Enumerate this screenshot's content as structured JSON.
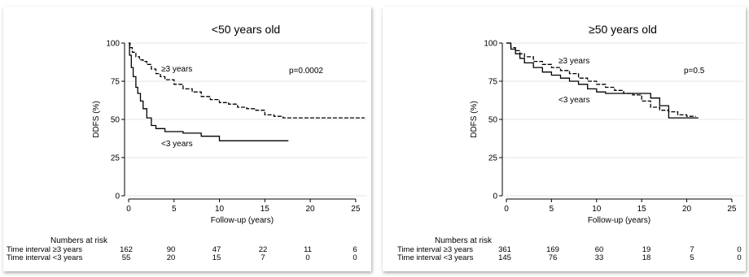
{
  "chart_data": [
    {
      "type": "line",
      "title": "<50 years old",
      "xlabel": "Follow-up (years)",
      "ylabel": "DDFS (%)",
      "xlim": [
        0,
        26
      ],
      "ylim": [
        0,
        100
      ],
      "xticks": [
        0,
        5,
        10,
        15,
        20,
        25
      ],
      "yticks": [
        0,
        25,
        50,
        75,
        100
      ],
      "pvalue": "p=0.0002",
      "series": [
        {
          "name": "≥3 years",
          "style": "dashed",
          "x": [
            0,
            0.15,
            0.4,
            0.8,
            1.2,
            1.6,
            2,
            2.5,
            3,
            3.5,
            4,
            5,
            6,
            7,
            8,
            9,
            10,
            11,
            12,
            13,
            14,
            15,
            16,
            17,
            26
          ],
          "y": [
            100,
            97,
            94,
            91,
            89,
            88,
            86,
            83,
            80,
            78,
            76,
            73,
            70,
            68,
            65,
            63,
            61,
            60,
            58,
            57,
            56,
            53,
            52,
            51,
            51
          ]
        },
        {
          "name": "<3 years",
          "style": "solid",
          "x": [
            0,
            0.1,
            0.3,
            0.5,
            0.8,
            1,
            1.3,
            1.6,
            2,
            2.5,
            3,
            4,
            5,
            6,
            8,
            9,
            10,
            14,
            17.6
          ],
          "y": [
            100,
            92,
            84,
            78,
            71,
            67,
            62,
            57,
            51,
            46,
            44,
            42,
            42,
            41,
            39,
            39,
            36,
            36,
            36
          ]
        }
      ],
      "annotations": [
        "≥3 years",
        "<3 years"
      ],
      "risk_table": {
        "header": "Numbers at risk",
        "rows": [
          {
            "label": "Time interval ≥3 years",
            "values": [
              "162",
              "90",
              "47",
              "22",
              "11",
              "6"
            ]
          },
          {
            "label": "Time interval <3 years",
            "values": [
              "55",
              "20",
              "15",
              "7",
              "0",
              "0"
            ]
          }
        ]
      }
    },
    {
      "type": "line",
      "title": "≥50 years old",
      "xlabel": "Follow-up (years)",
      "ylabel": "DDFS (%)",
      "xlim": [
        0,
        26
      ],
      "ylim": [
        0,
        100
      ],
      "xticks": [
        0,
        5,
        10,
        15,
        20,
        25
      ],
      "yticks": [
        0,
        25,
        50,
        75,
        100
      ],
      "pvalue": "p=0.5",
      "series": [
        {
          "name": "≥3 years",
          "style": "dashed",
          "x": [
            0,
            0.5,
            1,
            1.5,
            2,
            3,
            4,
            5,
            6,
            7,
            8,
            9,
            10,
            11,
            12,
            13,
            14,
            15,
            16,
            17,
            18,
            19,
            20,
            21
          ],
          "y": [
            100,
            97,
            95,
            93,
            91,
            88,
            86,
            84,
            82,
            80,
            77,
            75,
            73,
            71,
            69,
            67,
            66,
            62,
            58,
            56,
            55,
            53,
            52,
            52
          ]
        },
        {
          "name": "<3 years",
          "style": "solid",
          "x": [
            0,
            0.5,
            1,
            1.5,
            2,
            3,
            4,
            5,
            6,
            7,
            8,
            9,
            10,
            11,
            13,
            14,
            15,
            16,
            17,
            17.5,
            18,
            21.3
          ],
          "y": [
            100,
            96,
            93,
            90,
            87,
            84,
            81,
            79,
            77,
            75,
            73,
            70,
            68,
            67,
            67,
            67,
            67,
            64,
            59,
            59,
            51,
            51
          ]
        }
      ],
      "annotations": [
        "≥3 years",
        "<3 years"
      ],
      "risk_table": {
        "header": "Numbers at risk",
        "rows": [
          {
            "label": "Time interval ≥3 years",
            "values": [
              "361",
              "169",
              "60",
              "19",
              "7",
              "0"
            ]
          },
          {
            "label": "Time interval <3 years",
            "values": [
              "145",
              "76",
              "33",
              "18",
              "5",
              "0"
            ]
          }
        ]
      }
    }
  ]
}
